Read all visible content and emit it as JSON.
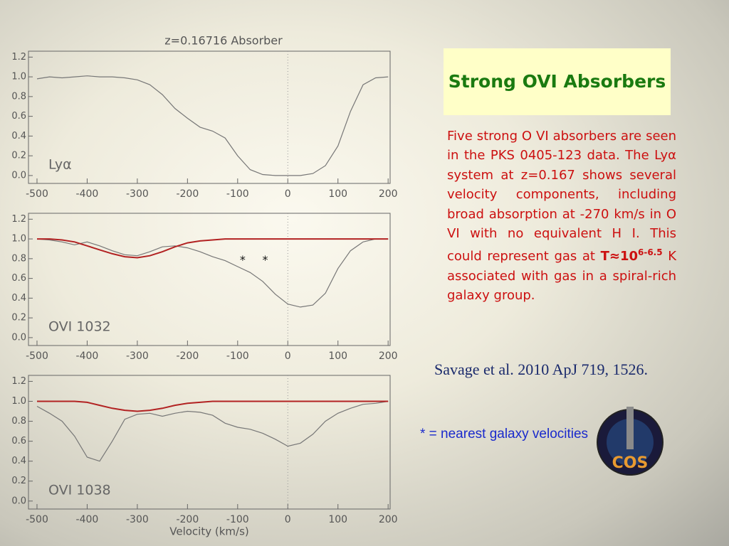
{
  "chart_data": [
    {
      "type": "line",
      "title": "z=0.16716 Absorber",
      "label": "Lyα",
      "x": [
        -500,
        -475,
        -450,
        -425,
        -400,
        -375,
        -350,
        -325,
        -300,
        -275,
        -250,
        -225,
        -200,
        -175,
        -150,
        -125,
        -100,
        -75,
        -50,
        -25,
        0,
        25,
        50,
        75,
        100,
        125,
        150,
        175,
        200
      ],
      "series": [
        {
          "color": "#777777",
          "values": [
            0.98,
            1.0,
            0.99,
            1.0,
            1.01,
            1.0,
            1.0,
            0.99,
            0.97,
            0.92,
            0.82,
            0.68,
            0.58,
            0.49,
            0.45,
            0.38,
            0.2,
            0.06,
            0.01,
            0.0,
            0.0,
            0.0,
            0.02,
            0.1,
            0.3,
            0.65,
            0.92,
            0.99,
            1.0
          ]
        }
      ],
      "xlim": [
        -517,
        204
      ],
      "ylim": [
        -0.08,
        1.26
      ],
      "xticks": [
        -500,
        -400,
        -300,
        -200,
        -100,
        0,
        100,
        200
      ],
      "yticks": [
        {
          "value": 0,
          "label": "0.0"
        },
        0.2,
        0.4,
        0.6,
        0.8,
        {
          "value": 1,
          "label": "1.0"
        },
        1.2
      ],
      "vline": 0
    },
    {
      "type": "line",
      "label": "OVI 1032",
      "x": [
        -500,
        -475,
        -450,
        -425,
        -400,
        -375,
        -350,
        -325,
        -300,
        -275,
        -250,
        -225,
        -200,
        -175,
        -150,
        -125,
        -100,
        -75,
        -50,
        -25,
        0,
        25,
        50,
        75,
        100,
        125,
        150,
        175,
        200
      ],
      "series": [
        {
          "color": "#777777",
          "values": [
            1.0,
            0.99,
            0.97,
            0.94,
            0.97,
            0.93,
            0.88,
            0.84,
            0.83,
            0.87,
            0.92,
            0.93,
            0.91,
            0.87,
            0.82,
            0.78,
            0.72,
            0.66,
            0.57,
            0.44,
            0.34,
            0.31,
            0.33,
            0.45,
            0.7,
            0.88,
            0.97,
            1.0,
            1.0
          ]
        },
        {
          "color": "#b22222",
          "values": [
            1.0,
            1.0,
            0.99,
            0.97,
            0.93,
            0.89,
            0.85,
            0.82,
            0.81,
            0.83,
            0.87,
            0.92,
            0.96,
            0.98,
            0.99,
            1.0,
            1.0,
            1.0,
            1.0,
            1.0,
            1.0,
            1.0,
            1.0,
            1.0,
            1.0,
            1.0,
            1.0,
            1.0,
            1.0
          ]
        }
      ],
      "annotations": [
        {
          "text": "*",
          "x": -90,
          "y": 0.78
        },
        {
          "text": "*",
          "x": -45,
          "y": 0.78
        }
      ],
      "xlim": [
        -517,
        204
      ],
      "ylim": [
        -0.08,
        1.26
      ],
      "xticks": [
        -500,
        -400,
        -300,
        -200,
        -100,
        0,
        100,
        200
      ],
      "yticks": [
        {
          "value": 0,
          "label": "0.0"
        },
        0.2,
        0.4,
        0.6,
        0.8,
        {
          "value": 1,
          "label": "1.0"
        },
        1.2
      ],
      "vline": 0
    },
    {
      "type": "line",
      "label": "OVI 1038",
      "x_label": "Velocity (km/s)",
      "x": [
        -500,
        -475,
        -450,
        -425,
        -400,
        -375,
        -350,
        -325,
        -300,
        -275,
        -250,
        -225,
        -200,
        -175,
        -150,
        -125,
        -100,
        -75,
        -50,
        -25,
        0,
        25,
        50,
        75,
        100,
        125,
        150,
        175,
        200
      ],
      "series": [
        {
          "color": "#777777",
          "values": [
            0.95,
            0.88,
            0.8,
            0.65,
            0.44,
            0.4,
            0.6,
            0.82,
            0.87,
            0.88,
            0.85,
            0.88,
            0.9,
            0.89,
            0.86,
            0.78,
            0.74,
            0.72,
            0.68,
            0.62,
            0.55,
            0.58,
            0.67,
            0.8,
            0.88,
            0.93,
            0.97,
            0.98,
            1.0
          ]
        },
        {
          "color": "#b22222",
          "values": [
            1.0,
            1.0,
            1.0,
            1.0,
            0.99,
            0.96,
            0.93,
            0.91,
            0.9,
            0.91,
            0.93,
            0.96,
            0.98,
            0.99,
            1.0,
            1.0,
            1.0,
            1.0,
            1.0,
            1.0,
            1.0,
            1.0,
            1.0,
            1.0,
            1.0,
            1.0,
            1.0,
            1.0,
            1.0
          ]
        }
      ],
      "xlim": [
        -517,
        204
      ],
      "ylim": [
        -0.08,
        1.26
      ],
      "xticks": [
        -500,
        -400,
        -300,
        -200,
        -100,
        0,
        100,
        200
      ],
      "yticks": [
        {
          "value": 0,
          "label": "0.0"
        },
        0.2,
        0.4,
        0.6,
        0.8,
        {
          "value": 1,
          "label": "1.0"
        },
        1.2
      ],
      "vline": 0
    }
  ],
  "slide": {
    "title": "Strong OVI Absorbers",
    "body": [
      "Five strong O VI absorbers are seen in the PKS 0405-123 data. The Ly",
      "α",
      " system at z=0.167 shows several velocity components, including broad absorption at -270 km/s in O VI with no equivalent H I.  This could represent gas at ",
      "T≈10",
      "6-6.5",
      " K associated with gas in a spiral-rich galaxy group."
    ],
    "citation": "Savage et al. 2010 ApJ 719, 1526.",
    "note": "* = nearest galaxy velocities",
    "logo_text": "COS"
  }
}
